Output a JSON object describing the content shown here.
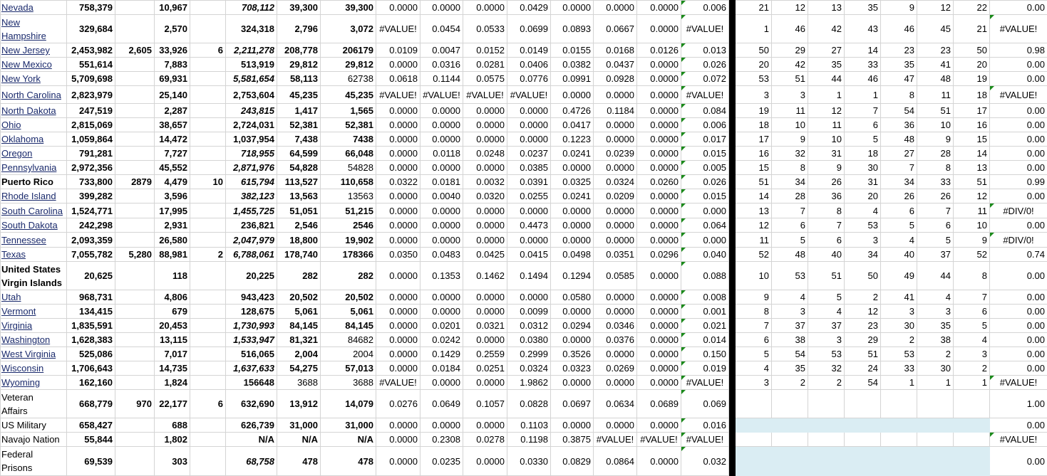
{
  "sheet": {
    "colors": {
      "error_indicator": "#1a8a1a",
      "highlight_fill": "#daedf3",
      "divider": "#000000",
      "grid": "#d4d4d4"
    },
    "rows": [
      {
        "name": "Nevada",
        "cells": [
          "758,379",
          "",
          "10,967",
          "",
          "708,112",
          "39,300",
          "39,300"
        ],
        "ratios": [
          "0.0000",
          "0.0000",
          "0.0000",
          "0.0429",
          "0.0000",
          "0.0000",
          "0.0000"
        ],
        "score": "0.006",
        "ranks": [
          "21",
          "12",
          "13",
          "35",
          "9",
          "12",
          "22"
        ],
        "result": "0.00"
      },
      {
        "name": "New Hampshire",
        "cells": [
          "329,684",
          "",
          "2,570",
          "",
          "324,318",
          "2,796",
          "3,072"
        ],
        "ratios": [
          "#VALUE!",
          "0.0454",
          "0.0533",
          "0.0699",
          "0.0893",
          "0.0667",
          "0.0000"
        ],
        "score": "#VALUE!",
        "ranks": [
          "1",
          "46",
          "42",
          "43",
          "46",
          "45",
          "21"
        ],
        "result": "#VALUE!"
      },
      {
        "name": "New Jersey",
        "cells": [
          "2,453,982",
          "2,605",
          "33,926",
          "6",
          "2,211,278",
          "208,778",
          "206179"
        ],
        "ratios": [
          "0.0109",
          "0.0047",
          "0.0152",
          "0.0149",
          "0.0155",
          "0.0168",
          "0.0126"
        ],
        "score": "0.013",
        "ranks": [
          "50",
          "29",
          "27",
          "14",
          "23",
          "23",
          "50"
        ],
        "result": "0.98"
      },
      {
        "name": "New Mexico",
        "cells": [
          "551,614",
          "",
          "7,883",
          "",
          "513,919",
          "29,812",
          "29,812"
        ],
        "ratios": [
          "0.0000",
          "0.0316",
          "0.0281",
          "0.0406",
          "0.0382",
          "0.0437",
          "0.0000"
        ],
        "score": "0.026",
        "ranks": [
          "20",
          "42",
          "35",
          "33",
          "35",
          "41",
          "20"
        ],
        "result": "0.00"
      },
      {
        "name": "New York",
        "cells": [
          "5,709,698",
          "",
          "69,931",
          "",
          "5,581,654",
          "58,113",
          "62738"
        ],
        "ratios": [
          "0.0618",
          "0.1144",
          "0.0575",
          "0.0776",
          "0.0991",
          "0.0928",
          "0.0000"
        ],
        "score": "0.072",
        "ranks": [
          "53",
          "51",
          "44",
          "46",
          "47",
          "48",
          "19"
        ],
        "result": "0.00"
      },
      {
        "name": "North Carolina",
        "cells": [
          "2,823,979",
          "",
          "25,140",
          "",
          "2,753,604",
          "45,235",
          "45,235"
        ],
        "ratios": [
          "#VALUE!",
          "#VALUE!",
          "#VALUE!",
          "#VALUE!",
          "0.0000",
          "0.0000",
          "0.0000"
        ],
        "score": "#VALUE!",
        "ranks": [
          "3",
          "3",
          "1",
          "1",
          "8",
          "11",
          "18"
        ],
        "result": "#VALUE!"
      },
      {
        "name": "North Dakota",
        "cells": [
          "247,519",
          "",
          "2,287",
          "",
          "243,815",
          "1,417",
          "1,565"
        ],
        "ratios": [
          "0.0000",
          "0.0000",
          "0.0000",
          "0.0000",
          "0.4726",
          "0.1184",
          "0.0000"
        ],
        "score": "0.084",
        "ranks": [
          "19",
          "11",
          "12",
          "7",
          "54",
          "51",
          "17"
        ],
        "result": "0.00"
      },
      {
        "name": "Ohio",
        "cells": [
          "2,815,069",
          "",
          "38,657",
          "",
          "2,724,031",
          "52,381",
          "52,381"
        ],
        "ratios": [
          "0.0000",
          "0.0000",
          "0.0000",
          "0.0000",
          "0.0417",
          "0.0000",
          "0.0000"
        ],
        "score": "0.006",
        "ranks": [
          "18",
          "10",
          "11",
          "6",
          "36",
          "10",
          "16"
        ],
        "result": "0.00"
      },
      {
        "name": "Oklahoma",
        "cells": [
          "1,059,864",
          "",
          "14,472",
          "",
          "1,037,954",
          "7,438",
          "7438"
        ],
        "ratios": [
          "0.0000",
          "0.0000",
          "0.0000",
          "0.0000",
          "0.1223",
          "0.0000",
          "0.0000"
        ],
        "score": "0.017",
        "ranks": [
          "17",
          "9",
          "10",
          "5",
          "48",
          "9",
          "15"
        ],
        "result": "0.00"
      },
      {
        "name": "Oregon",
        "cells": [
          "791,281",
          "",
          "7,727",
          "",
          "718,955",
          "64,599",
          "66,048"
        ],
        "ratios": [
          "0.0000",
          "0.0118",
          "0.0248",
          "0.0237",
          "0.0241",
          "0.0239",
          "0.0000"
        ],
        "score": "0.015",
        "ranks": [
          "16",
          "32",
          "31",
          "18",
          "27",
          "28",
          "14"
        ],
        "result": "0.00"
      },
      {
        "name": "Pennsylvania",
        "cells": [
          "2,972,356",
          "",
          "45,552",
          "",
          "2,871,976",
          "54,828",
          "54828"
        ],
        "ratios": [
          "0.0000",
          "0.0000",
          "0.0000",
          "0.0385",
          "0.0000",
          "0.0000",
          "0.0000"
        ],
        "score": "0.005",
        "ranks": [
          "15",
          "8",
          "9",
          "30",
          "7",
          "8",
          "13"
        ],
        "result": "0.00"
      },
      {
        "name": "Puerto Rico",
        "cells": [
          "733,800",
          "2879",
          "4,479",
          "10",
          "615,794",
          "113,527",
          "110,658"
        ],
        "ratios": [
          "0.0322",
          "0.0181",
          "0.0032",
          "0.0391",
          "0.0325",
          "0.0324",
          "0.0260"
        ],
        "score": "0.026",
        "ranks": [
          "51",
          "34",
          "26",
          "31",
          "34",
          "33",
          "51"
        ],
        "result": "0.99"
      },
      {
        "name": "Rhode Island",
        "cells": [
          "399,282",
          "",
          "3,596",
          "",
          "382,123",
          "13,563",
          "13563"
        ],
        "ratios": [
          "0.0000",
          "0.0040",
          "0.0320",
          "0.0255",
          "0.0241",
          "0.0209",
          "0.0000"
        ],
        "score": "0.015",
        "ranks": [
          "14",
          "28",
          "36",
          "20",
          "26",
          "26",
          "12"
        ],
        "result": "0.00"
      },
      {
        "name": "South Carolina",
        "cells": [
          "1,524,771",
          "",
          "17,995",
          "",
          "1,455,725",
          "51,051",
          "51,215"
        ],
        "ratios": [
          "0.0000",
          "0.0000",
          "0.0000",
          "0.0000",
          "0.0000",
          "0.0000",
          "0.0000"
        ],
        "score": "0.000",
        "ranks": [
          "13",
          "7",
          "8",
          "4",
          "6",
          "7",
          "11"
        ],
        "result": "#DIV/0!"
      },
      {
        "name": "South Dakota",
        "cells": [
          "242,298",
          "",
          "2,931",
          "",
          "236,821",
          "2,546",
          "2546"
        ],
        "ratios": [
          "0.0000",
          "0.0000",
          "0.0000",
          "0.4473",
          "0.0000",
          "0.0000",
          "0.0000"
        ],
        "score": "0.064",
        "ranks": [
          "12",
          "6",
          "7",
          "53",
          "5",
          "6",
          "10"
        ],
        "result": "0.00"
      },
      {
        "name": "Tennessee",
        "cells": [
          "2,093,359",
          "",
          "26,580",
          "",
          "2,047,979",
          "18,800",
          "19,902"
        ],
        "ratios": [
          "0.0000",
          "0.0000",
          "0.0000",
          "0.0000",
          "0.0000",
          "0.0000",
          "0.0000"
        ],
        "score": "0.000",
        "ranks": [
          "11",
          "5",
          "6",
          "3",
          "4",
          "5",
          "9"
        ],
        "result": "#DIV/0!"
      },
      {
        "name": "Texas",
        "cells": [
          "7,055,782",
          "5,280",
          "88,981",
          "2",
          "6,788,061",
          "178,740",
          "178366"
        ],
        "ratios": [
          "0.0350",
          "0.0483",
          "0.0425",
          "0.0415",
          "0.0498",
          "0.0351",
          "0.0296"
        ],
        "score": "0.040",
        "ranks": [
          "52",
          "48",
          "40",
          "34",
          "40",
          "37",
          "52"
        ],
        "result": "0.74"
      },
      {
        "name": "United States Virgin Islands",
        "cells": [
          "20,625",
          "",
          "118",
          "",
          "20,225",
          "282",
          "282"
        ],
        "ratios": [
          "0.0000",
          "0.1353",
          "0.1462",
          "0.1494",
          "0.1294",
          "0.0585",
          "0.0000"
        ],
        "score": "0.088",
        "ranks": [
          "10",
          "53",
          "51",
          "50",
          "49",
          "44",
          "8"
        ],
        "result": "0.00"
      },
      {
        "name": "Utah",
        "cells": [
          "968,731",
          "",
          "4,806",
          "",
          "943,423",
          "20,502",
          "20,502"
        ],
        "ratios": [
          "0.0000",
          "0.0000",
          "0.0000",
          "0.0000",
          "0.0580",
          "0.0000",
          "0.0000"
        ],
        "score": "0.008",
        "ranks": [
          "9",
          "4",
          "5",
          "2",
          "41",
          "4",
          "7"
        ],
        "result": "0.00"
      },
      {
        "name": "Vermont",
        "cells": [
          "134,415",
          "",
          "679",
          "",
          "128,675",
          "5,061",
          "5,061"
        ],
        "ratios": [
          "0.0000",
          "0.0000",
          "0.0000",
          "0.0099",
          "0.0000",
          "0.0000",
          "0.0000"
        ],
        "score": "0.001",
        "ranks": [
          "8",
          "3",
          "4",
          "12",
          "3",
          "3",
          "6"
        ],
        "result": "0.00"
      },
      {
        "name": "Virginia",
        "cells": [
          "1,835,591",
          "",
          "20,453",
          "",
          "1,730,993",
          "84,145",
          "84,145"
        ],
        "ratios": [
          "0.0000",
          "0.0201",
          "0.0321",
          "0.0312",
          "0.0294",
          "0.0346",
          "0.0000"
        ],
        "score": "0.021",
        "ranks": [
          "7",
          "37",
          "37",
          "23",
          "30",
          "35",
          "5"
        ],
        "result": "0.00"
      },
      {
        "name": "Washington",
        "cells": [
          "1,628,383",
          "",
          "13,115",
          "",
          "1,533,947",
          "81,321",
          "84682"
        ],
        "ratios": [
          "0.0000",
          "0.0242",
          "0.0000",
          "0.0380",
          "0.0000",
          "0.0376",
          "0.0000"
        ],
        "score": "0.014",
        "ranks": [
          "6",
          "38",
          "3",
          "29",
          "2",
          "38",
          "4"
        ],
        "result": "0.00"
      },
      {
        "name": "West Virginia",
        "cells": [
          "525,086",
          "",
          "7,017",
          "",
          "516,065",
          "2,004",
          "2004"
        ],
        "ratios": [
          "0.0000",
          "0.1429",
          "0.2559",
          "0.2999",
          "0.3526",
          "0.0000",
          "0.0000"
        ],
        "score": "0.150",
        "ranks": [
          "5",
          "54",
          "53",
          "51",
          "53",
          "2",
          "3"
        ],
        "result": "0.00"
      },
      {
        "name": "Wisconsin",
        "cells": [
          "1,706,643",
          "",
          "14,735",
          "",
          "1,637,633",
          "54,275",
          "57,013"
        ],
        "ratios": [
          "0.0000",
          "0.0184",
          "0.0251",
          "0.0324",
          "0.0323",
          "0.0269",
          "0.0000"
        ],
        "score": "0.019",
        "ranks": [
          "4",
          "35",
          "32",
          "24",
          "33",
          "30",
          "2"
        ],
        "result": "0.00"
      },
      {
        "name": "Wyoming",
        "cells": [
          "162,160",
          "",
          "1,824",
          "",
          "156648",
          "3688",
          "3688"
        ],
        "ratios": [
          "#VALUE!",
          "0.0000",
          "0.0000",
          "1.9862",
          "0.0000",
          "0.0000",
          "0.0000"
        ],
        "score": "#VALUE!",
        "ranks": [
          "3",
          "2",
          "2",
          "54",
          "1",
          "1",
          "1"
        ],
        "result": "#VALUE!"
      },
      {
        "name": "Veteran Affairs",
        "cells": [
          "668,779",
          "970",
          "22,177",
          "6",
          "632,690",
          "13,912",
          "14,079"
        ],
        "ratios": [
          "0.0276",
          "0.0649",
          "0.1057",
          "0.0828",
          "0.0697",
          "0.0634",
          "0.0689"
        ],
        "score": "0.069",
        "ranks": [
          "",
          "",
          "",
          "",
          "",
          "",
          ""
        ],
        "result": "1.00"
      },
      {
        "name": "US Military",
        "cells": [
          "658,427",
          "",
          "688",
          "",
          "626,739",
          "31,000",
          "31,000"
        ],
        "ratios": [
          "0.0000",
          "0.0000",
          "0.0000",
          "0.1103",
          "0.0000",
          "0.0000",
          "0.0000"
        ],
        "score": "0.016",
        "ranks": [
          "",
          "",
          "",
          "",
          "",
          "",
          ""
        ],
        "result": "0.00"
      },
      {
        "name": "Navajo Nation",
        "cells": [
          "55,844",
          "",
          "1,802",
          "",
          "N/A",
          "N/A",
          "N/A"
        ],
        "ratios": [
          "0.0000",
          "0.2308",
          "0.0278",
          "0.1198",
          "0.3875",
          "#VALUE!",
          "#VALUE!"
        ],
        "score": "#VALUE!",
        "ranks": [
          "",
          "",
          "",
          "",
          "",
          "",
          ""
        ],
        "result": "#VALUE!"
      },
      {
        "name": "Federal Prisons",
        "cells": [
          "69,539",
          "",
          "303",
          "",
          "68,758",
          "478",
          "478"
        ],
        "ratios": [
          "0.0000",
          "0.0235",
          "0.0000",
          "0.0330",
          "0.0829",
          "0.0864",
          "0.0000"
        ],
        "score": "0.032",
        "ranks": [
          "",
          "",
          "",
          "",
          "",
          "",
          ""
        ],
        "result": "0.00"
      }
    ]
  }
}
